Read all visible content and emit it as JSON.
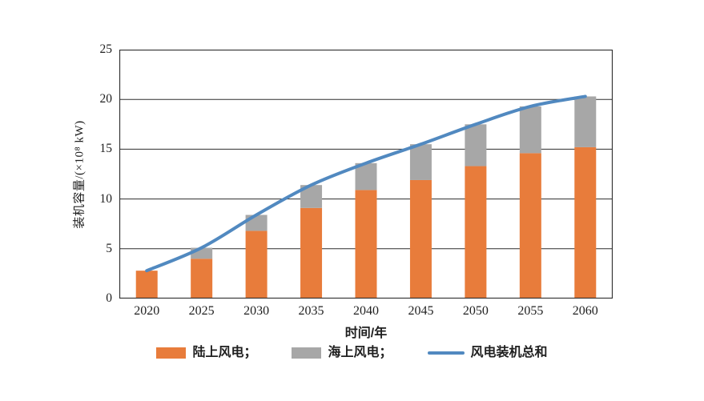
{
  "figure": {
    "y_axis_title": "装机容量/(×10⁸ kW)",
    "x_axis_title": "时间/年",
    "y_ticks": [
      0,
      5,
      10,
      15,
      20,
      25
    ],
    "colors": {
      "onshore": "#E87C3B",
      "offshore": "#A7A7A7",
      "total_line": "#5189C0",
      "grid": "#2e2e2e",
      "text": "#1f1f1f",
      "background": "#ffffff"
    },
    "legend": [
      {
        "label": "陆上风电；",
        "type": "bar",
        "color": "#E87C3B"
      },
      {
        "label": "海上风电；",
        "type": "bar",
        "color": "#A7A7A7"
      },
      {
        "label": "风电装机总和",
        "type": "line",
        "color": "#5189C0"
      }
    ]
  },
  "chart_data": {
    "type": "bar",
    "subtype": "stacked-bars-with-total-line",
    "title": "",
    "xlabel": "时间/年",
    "ylabel": "装机容量/(×10⁸ kW)",
    "ylim": [
      0,
      25
    ],
    "grid": "horizontal",
    "legend_position": "bottom",
    "categories": [
      "2020",
      "2025",
      "2030",
      "2035",
      "2040",
      "2045",
      "2050",
      "2055",
      "2060"
    ],
    "series": [
      {
        "name": "陆上风电",
        "type": "bar",
        "stack": true,
        "color": "#E87C3B",
        "values": [
          2.8,
          4.0,
          6.8,
          9.1,
          10.9,
          11.9,
          13.3,
          14.6,
          15.2
        ]
      },
      {
        "name": "海上风电",
        "type": "bar",
        "stack": true,
        "color": "#A7A7A7",
        "values": [
          0.0,
          1.1,
          1.6,
          2.3,
          2.7,
          3.6,
          4.2,
          4.7,
          5.1
        ]
      },
      {
        "name": "风电装机总和",
        "type": "line",
        "color": "#5189C0",
        "values": [
          2.8,
          5.1,
          8.4,
          11.4,
          13.6,
          15.5,
          17.5,
          19.3,
          20.3
        ]
      }
    ]
  }
}
